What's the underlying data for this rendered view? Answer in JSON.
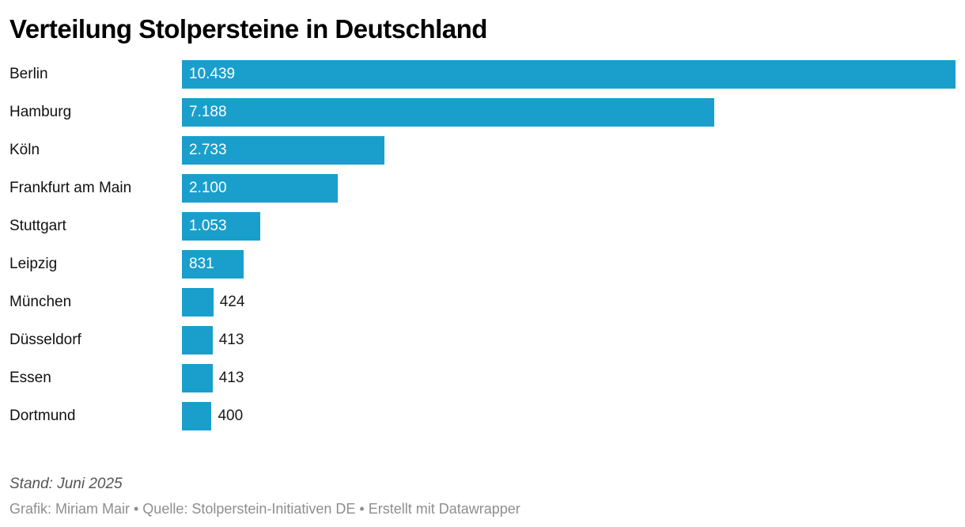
{
  "title": "Verteilung Stolpersteine in Deutschland",
  "footer": {
    "stand": "Stand: Juni 2025",
    "credits": "Grafik: Miriam Mair • Quelle: Stolperstein-Initiativen DE • Erstellt mit Datawrapper"
  },
  "colors": {
    "bar": "#1A9FCC",
    "value_inside": "#ffffff",
    "value_outside": "#1a1a1a"
  },
  "chart_data": {
    "type": "bar",
    "orientation": "horizontal",
    "title": "Verteilung Stolpersteine in Deutschland",
    "categories": [
      "Berlin",
      "Hamburg",
      "Köln",
      "Frankfurt am Main",
      "Stuttgart",
      "Leipzig",
      "München",
      "Düsseldorf",
      "Essen",
      "Dortmund"
    ],
    "values": [
      10439,
      7188,
      2733,
      2100,
      1053,
      831,
      424,
      413,
      413,
      400
    ],
    "value_labels": [
      "10.439",
      "7.188",
      "2.733",
      "2.100",
      "1.053",
      "831",
      "424",
      "413",
      "413",
      "400"
    ],
    "max_value": 10439,
    "xlabel": "",
    "ylabel": "",
    "grid": false,
    "legend": false
  }
}
